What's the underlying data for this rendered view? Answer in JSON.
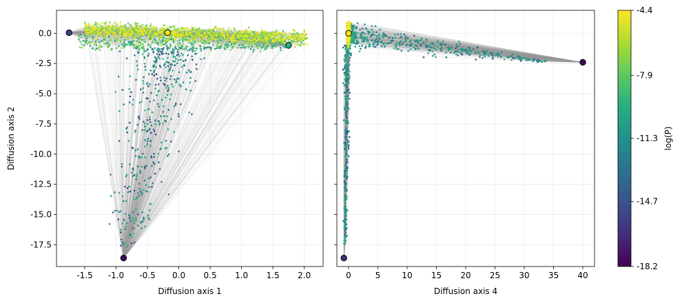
{
  "chart_data": [
    {
      "type": "scatter",
      "panel": "left",
      "title": "",
      "xlabel": "Diffusion axis 1",
      "ylabel": "Diffusion axis 2",
      "xlim": [
        -1.95,
        2.3
      ],
      "ylim": [
        -19.3,
        1.9
      ],
      "xticks": [
        -1.5,
        -1.0,
        -0.5,
        0.0,
        0.5,
        1.0,
        1.5,
        2.0
      ],
      "xtick_labels": [
        "-1.5",
        "-1.0",
        "-0.5",
        "0.0",
        "0.5",
        "1.0",
        "1.5",
        "2.0"
      ],
      "yticks": [
        0.0,
        -2.5,
        -5.0,
        -7.5,
        -10.0,
        -12.5,
        -15.0,
        -17.5
      ],
      "ytick_labels": [
        "0.0",
        "-2.5",
        "-5.0",
        "-7.5",
        "-10.0",
        "-12.5",
        "-15.0",
        "-17.5"
      ],
      "grid": true,
      "anchors": [
        {
          "x": -1.75,
          "y": 0.05,
          "logp": -15.5
        },
        {
          "x": -0.18,
          "y": 0.05,
          "logp": -4.5
        },
        {
          "x": 1.75,
          "y": -1.0,
          "logp": -9.5
        },
        {
          "x": -0.88,
          "y": -18.6,
          "logp": -18.0
        }
      ],
      "point_clouds": [
        {
          "description": "dense band near y=0",
          "x_range": [
            -1.5,
            2.05
          ],
          "y_range": [
            -1.2,
            0.9
          ],
          "logp_range": [
            -9,
            -4.4
          ],
          "approx_count": 1400
        },
        {
          "description": "lower band",
          "x_range": [
            -1.6,
            1.7
          ],
          "y_range": [
            -1.5,
            0.3
          ],
          "logp_range": [
            -12,
            -6
          ],
          "approx_count": 500
        },
        {
          "description": "funnel towards bottom anchor",
          "x_range": [
            -1.1,
            0.6
          ],
          "y_range": [
            -17.8,
            -1.0
          ],
          "logp_range": [
            -16,
            -9
          ],
          "approx_count": 450
        }
      ]
    },
    {
      "type": "scatter",
      "panel": "right",
      "title": "",
      "xlabel": "Diffusion axis 4",
      "ylabel": "",
      "xlim": [
        -2.0,
        42.0
      ],
      "ylim": [
        -19.3,
        1.9
      ],
      "xticks": [
        0,
        5,
        10,
        15,
        20,
        25,
        30,
        35,
        40
      ],
      "xtick_labels": [
        "0",
        "5",
        "10",
        "15",
        "20",
        "25",
        "30",
        "35",
        "40"
      ],
      "yticks": [
        0.0,
        -2.5,
        -5.0,
        -7.5,
        -10.0,
        -12.5,
        -15.0,
        -17.5
      ],
      "grid": true,
      "anchors": [
        {
          "x": 0.0,
          "y": 0.0,
          "logp": -4.5
        },
        {
          "x": 40.0,
          "y": -2.4,
          "logp": -18.0
        },
        {
          "x": -0.8,
          "y": -18.6,
          "logp": -16.5
        }
      ],
      "point_clouds": [
        {
          "description": "tight cluster near origin",
          "x_range": [
            -0.5,
            0.5
          ],
          "y_range": [
            -1.5,
            0.9
          ],
          "logp_range": [
            -8,
            -4.4
          ],
          "approx_count": 900
        },
        {
          "description": "streak to the right anchor",
          "x_range": [
            0,
            34
          ],
          "y_range": [
            -2.8,
            0.0
          ],
          "logp_range": [
            -15,
            -9
          ],
          "approx_count": 500
        },
        {
          "description": "vertical streak to bottom anchor",
          "x_range": [
            -1.0,
            1.0
          ],
          "y_range": [
            -17.5,
            -1.0
          ],
          "logp_range": [
            -16,
            -9
          ],
          "approx_count": 400
        }
      ]
    }
  ],
  "colorbar": {
    "label": "log(P)",
    "min": -18.2,
    "max": -4.4,
    "tick_values": [
      -4.4,
      -7.9,
      -11.3,
      -14.7,
      -18.2
    ],
    "tick_labels": [
      "-4.4",
      "-7.9",
      "-11.3",
      "-14.7",
      "-18.2"
    ],
    "colormap": "viridis"
  },
  "colors": {
    "grid": "#ebebeb",
    "edges": "#9a9a9a"
  }
}
